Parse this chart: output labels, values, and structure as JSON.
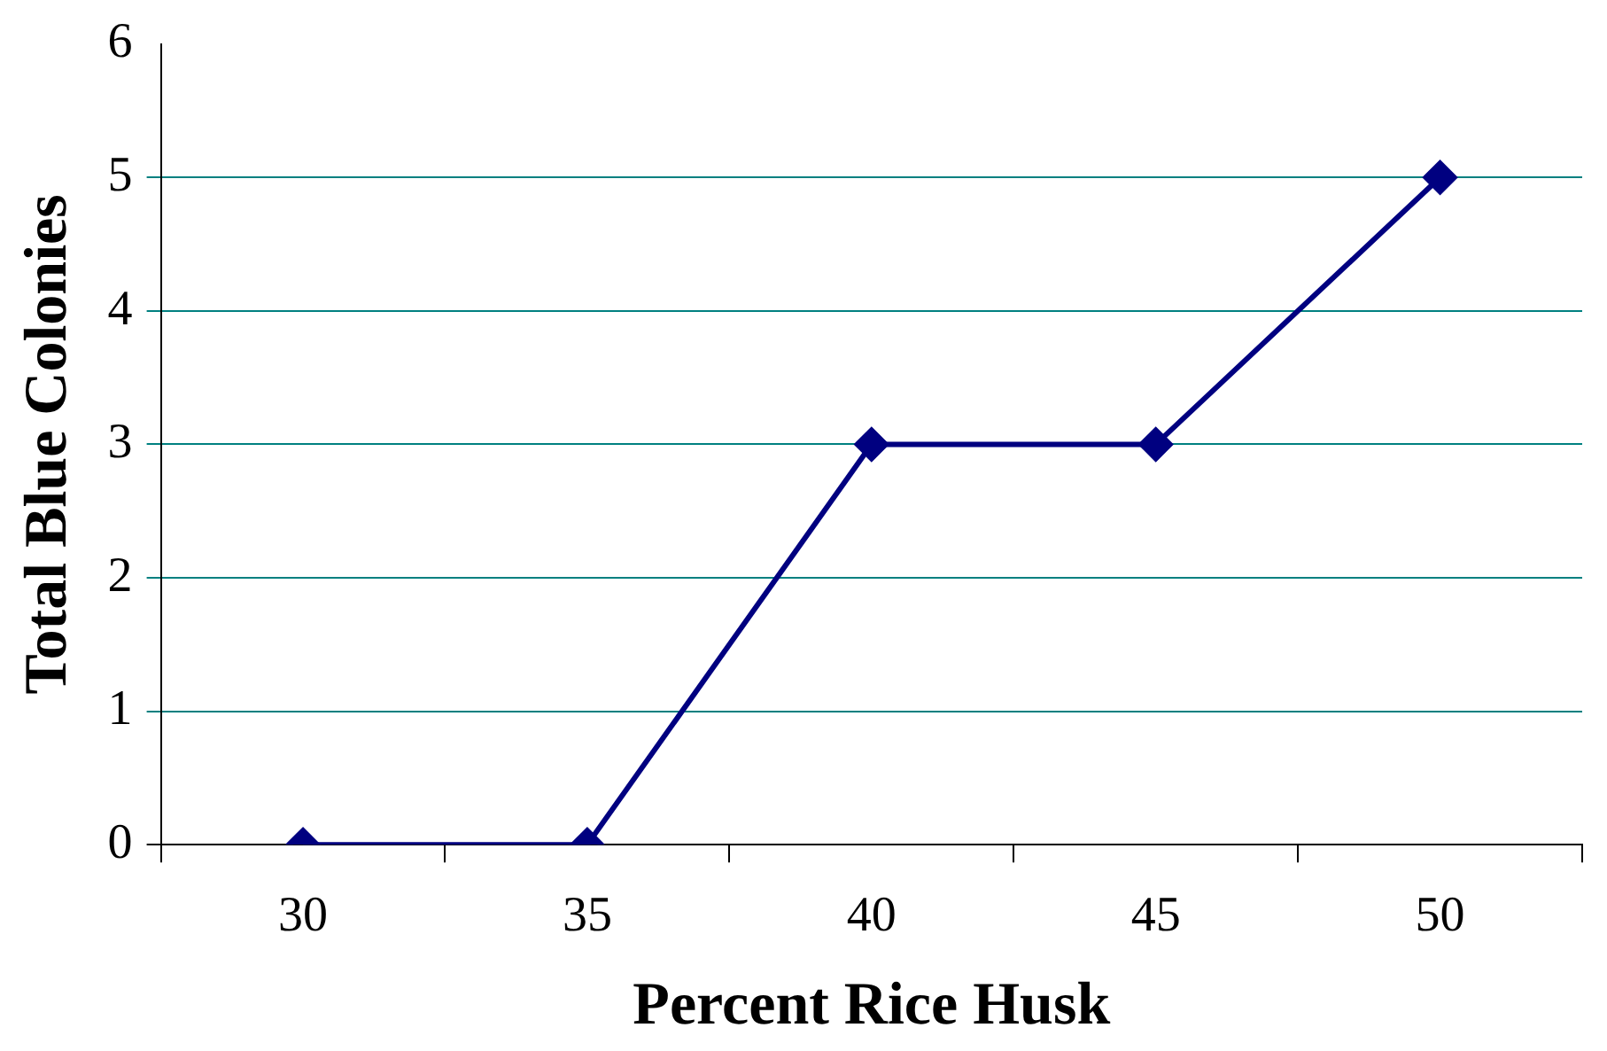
{
  "chart_data": {
    "type": "line",
    "xlabel": "Percent Rice Husk",
    "ylabel": "Total Blue Colonies",
    "categories": [
      "30",
      "35",
      "40",
      "45",
      "50"
    ],
    "series": [
      {
        "color": "#000080",
        "values": [
          0,
          0,
          3,
          3,
          5
        ]
      }
    ],
    "ylim": [
      0,
      6
    ],
    "yticks": [
      0,
      1,
      2,
      3,
      4,
      5,
      6
    ],
    "grid": "y",
    "marker": "diamond",
    "line_style": "solid",
    "legend": false
  }
}
